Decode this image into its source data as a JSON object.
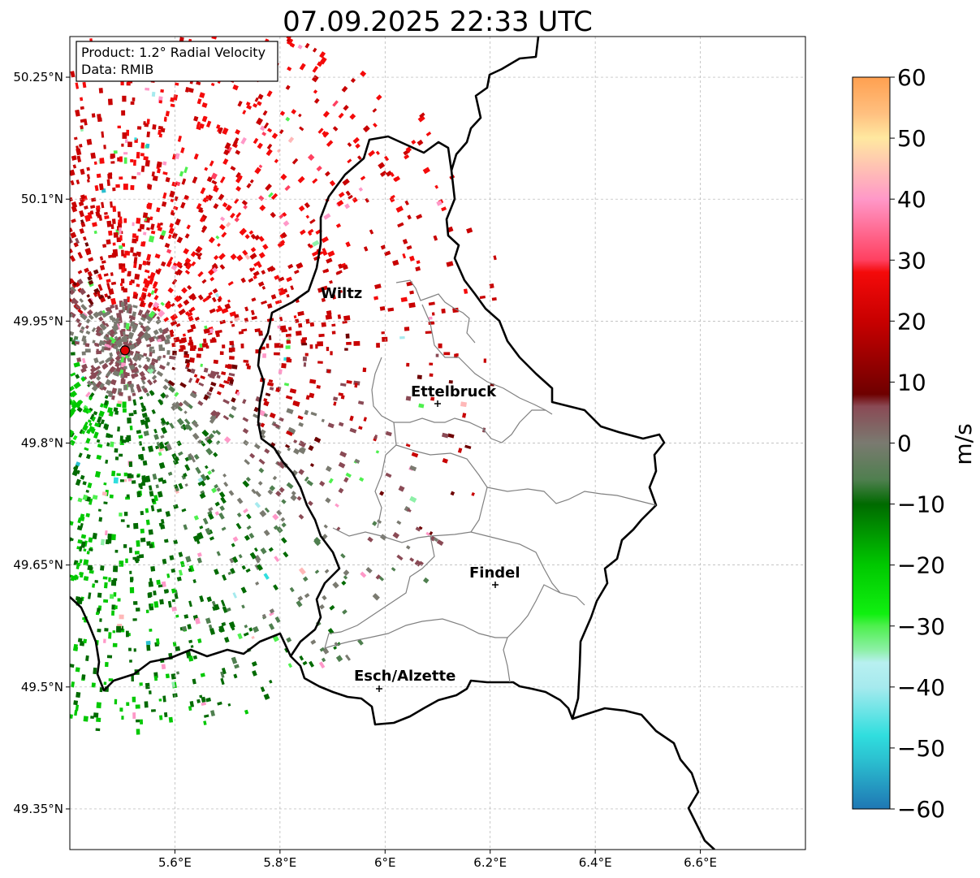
{
  "title": "07.09.2025 22:33 UTC",
  "info_box": {
    "product": "Product: 1.2° Radial Velocity",
    "data_source": "Data: RMIB"
  },
  "map": {
    "lon_range": [
      5.4,
      6.8
    ],
    "lat_range": [
      49.3,
      50.3
    ],
    "lon_ticks": [
      5.6,
      5.8,
      6.0,
      6.2,
      6.4,
      6.6
    ],
    "lon_tick_labels": [
      "5.6°E",
      "5.8°E",
      "6°E",
      "6.2°E",
      "6.4°E",
      "6.6°E"
    ],
    "lat_ticks": [
      50.25,
      50.1,
      49.95,
      49.8,
      49.65,
      49.5,
      49.35
    ],
    "lat_tick_labels": [
      "50.25°N",
      "50.1°N",
      "49.95°N",
      "49.8°N",
      "49.65°N",
      "49.5°N",
      "49.35°N"
    ],
    "grid": true,
    "radar_site": {
      "lon": 5.505,
      "lat": 49.914
    },
    "places": [
      {
        "name": "Wiltz",
        "lon": 5.93,
        "lat": 49.97
      },
      {
        "name": "Ettelbruck",
        "lon": 6.1,
        "lat": 49.85
      },
      {
        "name": "Findel",
        "lon": 6.21,
        "lat": 49.627
      },
      {
        "name": "Esch/Alzette",
        "lon": 5.98,
        "lat": 49.5
      }
    ]
  },
  "colorbar": {
    "label": "m/s",
    "min": -60,
    "max": 60,
    "ticks": [
      60,
      50,
      40,
      30,
      20,
      10,
      0,
      -10,
      -20,
      -30,
      -40,
      -50,
      -60
    ],
    "tick_labels": [
      "60",
      "50",
      "40",
      "30",
      "20",
      "10",
      "0",
      "−10",
      "−20",
      "−30",
      "−40",
      "−50",
      "−60"
    ],
    "stops": [
      {
        "v": -60,
        "color": "#1f77b4"
      },
      {
        "v": -52,
        "color": "#2bc0d0"
      },
      {
        "v": -48,
        "color": "#30dede"
      },
      {
        "v": -40,
        "color": "#a6eaee"
      },
      {
        "v": -36,
        "color": "#b8f0f0"
      },
      {
        "v": -34,
        "color": "#8ef0a8"
      },
      {
        "v": -30,
        "color": "#4ef04e"
      },
      {
        "v": -28,
        "color": "#10f010"
      },
      {
        "v": -20,
        "color": "#00c800"
      },
      {
        "v": -10,
        "color": "#006a00"
      },
      {
        "v": -6,
        "color": "#4f7f4f"
      },
      {
        "v": 0,
        "color": "#7a7a70"
      },
      {
        "v": 6,
        "color": "#8a4a55"
      },
      {
        "v": 8,
        "color": "#6e0000"
      },
      {
        "v": 20,
        "color": "#c80000"
      },
      {
        "v": 28,
        "color": "#f40a0a"
      },
      {
        "v": 30,
        "color": "#ff4060"
      },
      {
        "v": 40,
        "color": "#ff98c8"
      },
      {
        "v": 44,
        "color": "#ffb8b8"
      },
      {
        "v": 50,
        "color": "#ffe8a0"
      },
      {
        "v": 54,
        "color": "#ffc080"
      },
      {
        "v": 60,
        "color": "#ffa050"
      }
    ]
  }
}
